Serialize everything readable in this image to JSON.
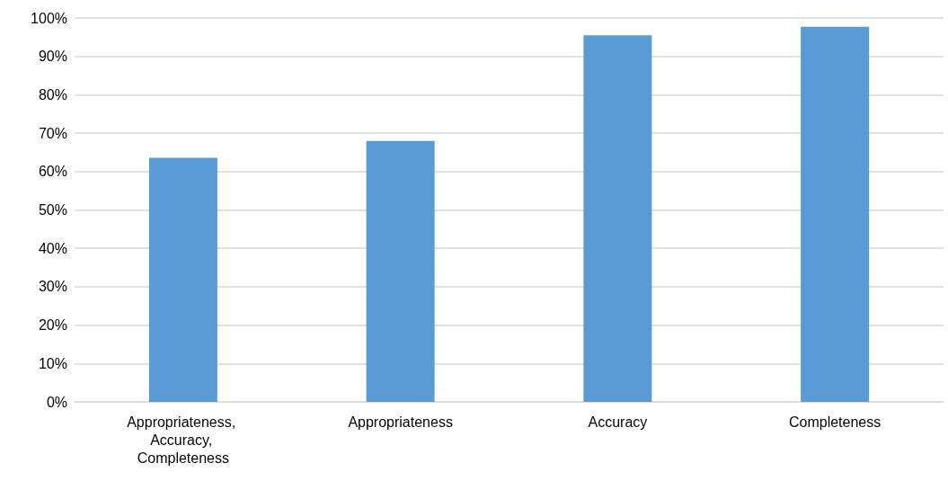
{
  "chart_data": {
    "type": "bar",
    "categories": [
      "Appropriateness, Accuracy, Completeness",
      "Appropriateness",
      "Accuracy",
      "Completeness"
    ],
    "values": [
      63.6,
      68.0,
      95.5,
      97.7
    ],
    "color": "#5b9bd5",
    "ylim": [
      0,
      100
    ],
    "yticks": [
      {
        "value": 0,
        "label": "0%"
      },
      {
        "value": 10,
        "label": "10%"
      },
      {
        "value": 20,
        "label": "20%"
      },
      {
        "value": 30,
        "label": "30%"
      },
      {
        "value": 40,
        "label": "40%"
      },
      {
        "value": 50,
        "label": "50%"
      },
      {
        "value": 60,
        "label": "60%"
      },
      {
        "value": 70,
        "label": "70%"
      },
      {
        "value": 80,
        "label": "80%"
      },
      {
        "value": 90,
        "label": "90%"
      },
      {
        "value": 100,
        "label": "100%"
      }
    ],
    "grid": true
  }
}
